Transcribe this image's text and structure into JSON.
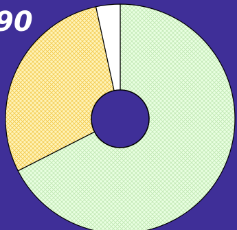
{
  "chart_data": {
    "type": "pie",
    "title": "90",
    "donut": true,
    "slices": [
      {
        "value": 67.5,
        "color": "#e9ffe1",
        "pattern": "crosshatch-green"
      },
      {
        "value": 29.1,
        "color": "#fff3b8",
        "pattern": "crosshatch-yellow"
      },
      {
        "value": 3.4,
        "color": "#ffffff",
        "pattern": "none"
      }
    ],
    "legend": "none",
    "start_angle_deg": 0,
    "direction": "clockwise"
  }
}
